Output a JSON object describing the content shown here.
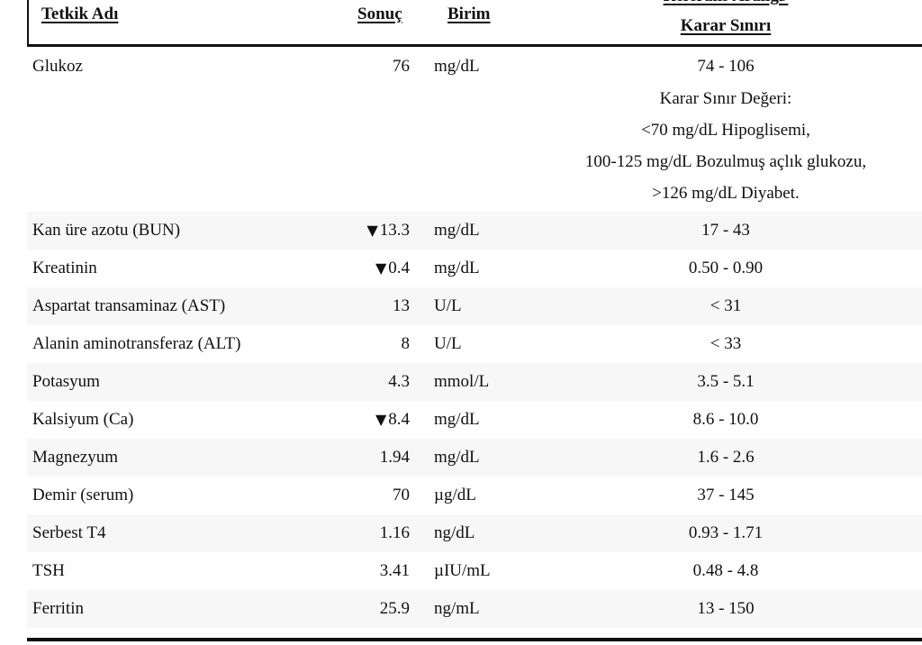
{
  "table": {
    "columns": {
      "test": "Tetkik Adı",
      "result": "Sonuç",
      "unit": "Birim",
      "reference_line1": "Referans Aralığı/",
      "reference_line2": "Karar Sınırı"
    },
    "glucose": {
      "name": "Glukoz",
      "result": "76",
      "unit": "mg/dL",
      "reference": "74 - 106",
      "decision_notes": [
        "Karar Sınır Değeri:",
        "<70 mg/dL Hipoglisemi,",
        "100-125 mg/dL Bozulmuş açlık glukozu,",
        ">126 mg/dL Diyabet."
      ]
    },
    "rows": [
      {
        "name": "Kan üre azotu (BUN)",
        "flag": "▼",
        "result": "13.3",
        "unit": "mg/dL",
        "reference": "17 - 43"
      },
      {
        "name": "Kreatinin",
        "flag": "▼",
        "result": "0.4",
        "unit": "mg/dL",
        "reference": "0.50 - 0.90"
      },
      {
        "name": "Aspartat transaminaz (AST)",
        "flag": "",
        "result": "13",
        "unit": "U/L",
        "reference": "< 31"
      },
      {
        "name": "Alanin aminotransferaz (ALT)",
        "flag": "",
        "result": "8",
        "unit": "U/L",
        "reference": "< 33"
      },
      {
        "name": "Potasyum",
        "flag": "",
        "result": "4.3",
        "unit": "mmol/L",
        "reference": "3.5 - 5.1"
      },
      {
        "name": "Kalsiyum (Ca)",
        "flag": "▼",
        "result": "8.4",
        "unit": "mg/dL",
        "reference": "8.6 - 10.0"
      },
      {
        "name": "Magnezyum",
        "flag": "",
        "result": "1.94",
        "unit": "mg/dL",
        "reference": "1.6 - 2.6"
      },
      {
        "name": "Demir (serum)",
        "flag": "",
        "result": "70",
        "unit": "µg/dL",
        "reference": "37 - 145"
      },
      {
        "name": "Serbest T4",
        "flag": "",
        "result": "1.16",
        "unit": "ng/dL",
        "reference": "0.93 - 1.71"
      },
      {
        "name": "TSH",
        "flag": "",
        "result": "3.41",
        "unit": "µIU/mL",
        "reference": "0.48 - 4.8"
      },
      {
        "name": "Ferritin",
        "flag": "",
        "result": "25.9",
        "unit": "ng/mL",
        "reference": "13 - 150"
      }
    ],
    "colors": {
      "stripe": "#f7f7f7",
      "rule": "#111111"
    }
  }
}
